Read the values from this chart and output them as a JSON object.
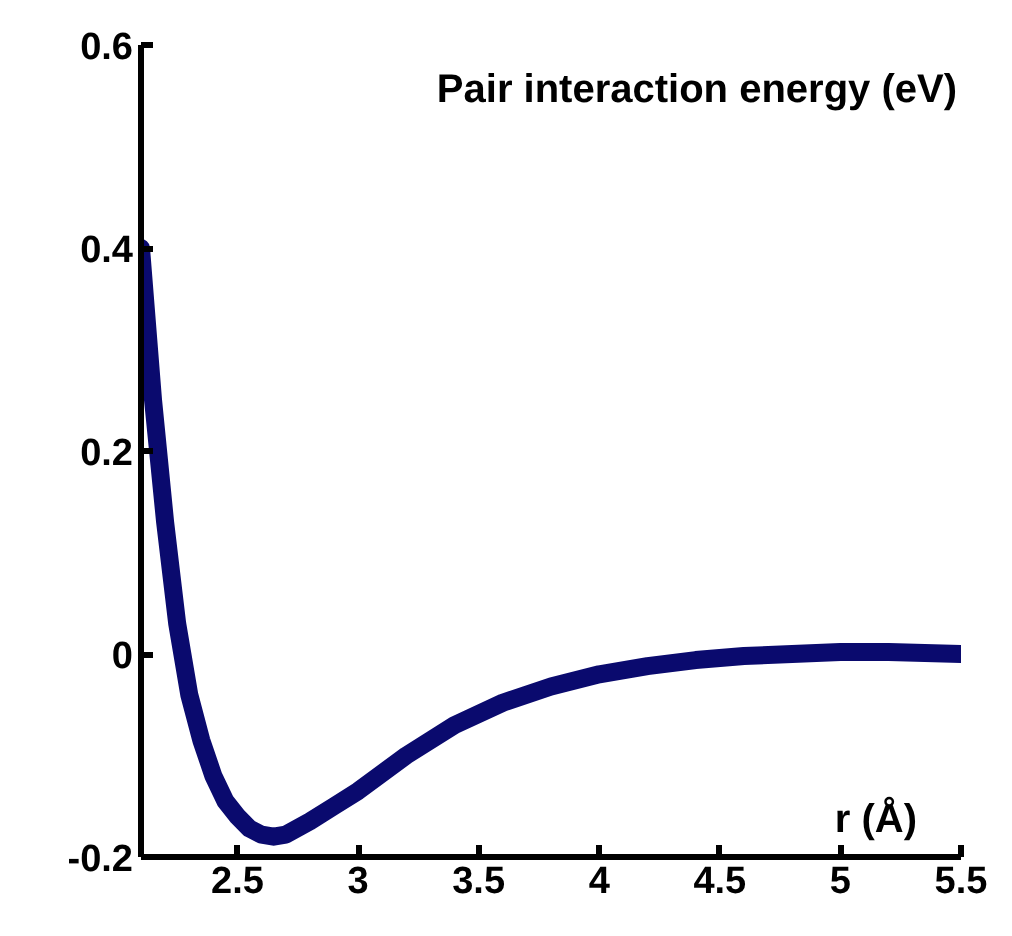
{
  "chart_data": {
    "type": "line",
    "ylabel": "Pair interaction energy (eV)",
    "xlabel": "r (Å)",
    "x": [
      2.1,
      2.15,
      2.2,
      2.25,
      2.3,
      2.35,
      2.4,
      2.45,
      2.5,
      2.55,
      2.6,
      2.65,
      2.7,
      2.8,
      2.9,
      3.0,
      3.2,
      3.4,
      3.6,
      3.8,
      4.0,
      4.2,
      4.4,
      4.6,
      4.8,
      5.0,
      5.2,
      5.5
    ],
    "series": [
      {
        "color": "#0a0a6e",
        "values": [
          0.4,
          0.25,
          0.13,
          0.03,
          -0.04,
          -0.085,
          -0.12,
          -0.145,
          -0.16,
          -0.172,
          -0.178,
          -0.18,
          -0.178,
          -0.165,
          -0.15,
          -0.135,
          -0.1,
          -0.07,
          -0.048,
          -0.032,
          -0.02,
          -0.012,
          -0.006,
          -0.002,
          0.0,
          0.002,
          0.002,
          0.0
        ]
      }
    ],
    "xlim": [
      2.1,
      5.5
    ],
    "ylim": [
      -0.2,
      0.6
    ],
    "xticks": [
      2.5,
      3,
      3.5,
      4,
      4.5,
      5,
      5.5
    ],
    "yticks": [
      -0.2,
      0,
      0.2,
      0.4,
      0.6
    ],
    "line_style": "solid"
  }
}
